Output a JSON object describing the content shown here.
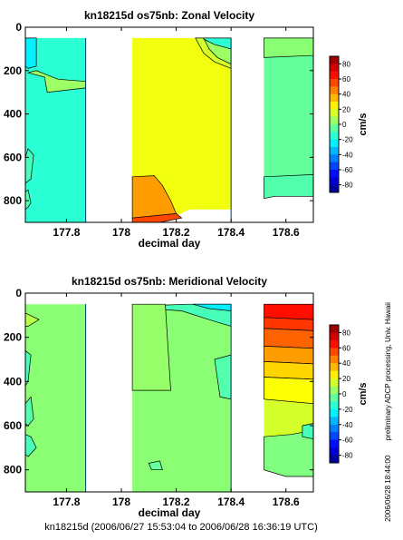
{
  "footer": "kn18215d (2006/06/27 15:53:04 to 2006/06/28 16:36:19 UTC)",
  "side_note": {
    "line1": "preliminary ADCP processing,   Univ. Hawaii",
    "line2": "2006/06/28 18:44:00"
  },
  "chart_data": [
    {
      "type": "heatmap",
      "title": "kn18215d os75nb: Zonal Velocity",
      "xlabel": "decimal day",
      "ylabel": "",
      "xlim": [
        177.65,
        178.7
      ],
      "ylim": [
        900,
        0
      ],
      "xticks": [
        "177.8",
        "178",
        "178.2",
        "178.4",
        "178.6"
      ],
      "yticks": [
        "0",
        "200",
        "400",
        "600",
        "800"
      ],
      "colorbar": {
        "label": "cm/s",
        "range": [
          -90,
          90
        ],
        "ticks": [
          "80",
          "60",
          "40",
          "20",
          "0",
          "-20",
          "-40",
          "-60",
          "-80"
        ]
      },
      "segments": [
        {
          "x": [
            177.65,
            177.87
          ],
          "regions": [
            {
              "value": -15,
              "poly": [
                [
                  177.65,
                  50
                ],
                [
                  177.87,
                  50
                ],
                [
                  177.87,
                  900
                ],
                [
                  177.65,
                  900
                ]
              ]
            },
            {
              "value": -25,
              "poly": [
                [
                  177.65,
                  50
                ],
                [
                  177.69,
                  50
                ],
                [
                  177.69,
                  180
                ],
                [
                  177.66,
                  190
                ],
                [
                  177.65,
                  180
                ]
              ]
            },
            {
              "value": 5,
              "poly": [
                [
                  177.66,
                  210
                ],
                [
                  177.72,
                  230
                ],
                [
                  177.73,
                  300
                ],
                [
                  177.87,
                  280
                ],
                [
                  177.87,
                  250
                ],
                [
                  177.77,
                  240
                ],
                [
                  177.72,
                  215
                ],
                [
                  177.69,
                  200
                ]
              ]
            },
            {
              "value": -10,
              "poly": [
                [
                  177.65,
                  600
                ],
                [
                  177.66,
                  560
                ],
                [
                  177.68,
                  590
                ],
                [
                  177.67,
                  700
                ],
                [
                  177.65,
                  720
                ]
              ]
            },
            {
              "value": -8,
              "poly": [
                [
                  177.65,
                  760
                ],
                [
                  177.66,
                  750
                ],
                [
                  177.67,
                  810
                ],
                [
                  177.66,
                  830
                ],
                [
                  177.65,
                  840
                ]
              ]
            }
          ]
        },
        {
          "x": [
            178.04,
            178.4
          ],
          "regions": [
            {
              "value": 20,
              "poly": [
                [
                  178.04,
                  50
                ],
                [
                  178.4,
                  50
                ],
                [
                  178.4,
                  840
                ],
                [
                  178.25,
                  840
                ],
                [
                  178.2,
                  870
                ],
                [
                  178.04,
                  900
                ]
              ]
            },
            {
              "value": 15,
              "poly": [
                [
                  178.27,
                  50
                ],
                [
                  178.4,
                  50
                ],
                [
                  178.4,
                  190
                ],
                [
                  178.34,
                  160
                ],
                [
                  178.3,
                  120
                ]
              ]
            },
            {
              "value": 5,
              "poly": [
                [
                  178.3,
                  50
                ],
                [
                  178.4,
                  50
                ],
                [
                  178.4,
                  170
                ],
                [
                  178.35,
                  140
                ],
                [
                  178.32,
                  100
                ]
              ]
            },
            {
              "value": -15,
              "poly": [
                [
                  178.3,
                  50
                ],
                [
                  178.4,
                  50
                ],
                [
                  178.4,
                  100
                ],
                [
                  178.34,
                  80
                ],
                [
                  178.3,
                  55
                ]
              ]
            },
            {
              "value": 40,
              "poly": [
                [
                  178.04,
                  690
                ],
                [
                  178.12,
                  685
                ],
                [
                  178.15,
                  730
                ],
                [
                  178.18,
                  800
                ],
                [
                  178.2,
                  860
                ],
                [
                  178.04,
                  880
                ]
              ]
            },
            {
              "value": 55,
              "poly": [
                [
                  178.04,
                  880
                ],
                [
                  178.2,
                  860
                ],
                [
                  178.22,
                  880
                ],
                [
                  178.14,
                  900
                ],
                [
                  178.04,
                  900
                ]
              ]
            }
          ]
        },
        {
          "x": [
            178.52,
            178.7
          ],
          "regions": [
            {
              "value": -5,
              "poly": [
                [
                  178.52,
                  50
                ],
                [
                  178.7,
                  50
                ],
                [
                  178.7,
                  780
                ],
                [
                  178.56,
                  780
                ],
                [
                  178.52,
                  790
                ]
              ]
            },
            {
              "value": 2,
              "poly": [
                [
                  178.52,
                  50
                ],
                [
                  178.7,
                  50
                ],
                [
                  178.7,
                  130
                ],
                [
                  178.52,
                  140
                ]
              ]
            },
            {
              "value": -8,
              "poly": [
                [
                  178.52,
                  690
                ],
                [
                  178.7,
                  680
                ],
                [
                  178.7,
                  780
                ],
                [
                  178.56,
                  780
                ],
                [
                  178.52,
                  790
                ]
              ]
            }
          ]
        }
      ]
    },
    {
      "type": "heatmap",
      "title": "kn18215d os75nb: Meridional Velocity",
      "xlabel": "decimal day",
      "ylabel": "",
      "xlim": [
        177.65,
        178.7
      ],
      "ylim": [
        900,
        0
      ],
      "xticks": [
        "177.8",
        "178",
        "178.2",
        "178.4",
        "178.6"
      ],
      "yticks": [
        "0",
        "200",
        "400",
        "600",
        "800"
      ],
      "colorbar": {
        "label": "cm/s",
        "range": [
          -90,
          90
        ],
        "ticks": [
          "80",
          "60",
          "40",
          "20",
          "0",
          "-20",
          "-40",
          "-60",
          "-80"
        ]
      },
      "segments": [
        {
          "x": [
            177.65,
            177.87
          ],
          "regions": [
            {
              "value": 2,
              "poly": [
                [
                  177.65,
                  50
                ],
                [
                  177.87,
                  50
                ],
                [
                  177.87,
                  900
                ],
                [
                  177.65,
                  900
                ]
              ]
            },
            {
              "value": -10,
              "poly": [
                [
                  177.65,
                  260
                ],
                [
                  177.67,
                  280
                ],
                [
                  177.66,
                  400
                ],
                [
                  177.65,
                  420
                ]
              ]
            },
            {
              "value": -8,
              "poly": [
                [
                  177.65,
                  500
                ],
                [
                  177.67,
                  470
                ],
                [
                  177.68,
                  570
                ],
                [
                  177.66,
                  600
                ],
                [
                  177.65,
                  590
                ]
              ]
            },
            {
              "value": -10,
              "poly": [
                [
                  177.65,
                  640
                ],
                [
                  177.67,
                  650
                ],
                [
                  177.69,
                  700
                ],
                [
                  177.66,
                  740
                ],
                [
                  177.65,
                  730
                ]
              ]
            },
            {
              "value": 10,
              "poly": [
                [
                  177.65,
                  90
                ],
                [
                  177.7,
                  120
                ],
                [
                  177.66,
                  150
                ],
                [
                  177.65,
                  150
                ]
              ]
            }
          ]
        },
        {
          "x": [
            178.04,
            178.4
          ],
          "regions": [
            {
              "value": 2,
              "poly": [
                [
                  178.04,
                  50
                ],
                [
                  178.4,
                  50
                ],
                [
                  178.4,
                  900
                ],
                [
                  178.04,
                  900
                ]
              ]
            },
            {
              "value": -10,
              "poly": [
                [
                  178.04,
                  60
                ],
                [
                  178.24,
                  50
                ],
                [
                  178.4,
                  50
                ],
                [
                  178.4,
                  150
                ],
                [
                  178.32,
                  120
                ],
                [
                  178.22,
                  80
                ],
                [
                  178.1,
                  70
                ]
              ]
            },
            {
              "value": -25,
              "poly": [
                [
                  178.26,
                  50
                ],
                [
                  178.4,
                  50
                ],
                [
                  178.4,
                  80
                ],
                [
                  178.32,
                  70
                ]
              ]
            },
            {
              "value": -8,
              "poly": [
                [
                  178.34,
                  300
                ],
                [
                  178.4,
                  280
                ],
                [
                  178.4,
                  480
                ],
                [
                  178.36,
                  470
                ]
              ]
            },
            {
              "value": 4,
              "poly": [
                [
                  178.04,
                  50
                ],
                [
                  178.16,
                  50
                ],
                [
                  178.18,
                  440
                ],
                [
                  178.04,
                  440
                ]
              ]
            },
            {
              "value": -5,
              "poly": [
                [
                  178.1,
                  770
                ],
                [
                  178.14,
                  760
                ],
                [
                  178.15,
                  800
                ],
                [
                  178.11,
                  800
                ]
              ]
            }
          ]
        },
        {
          "x": [
            178.52,
            178.7
          ],
          "regions": [
            {
              "value": 15,
              "poly": [
                [
                  178.52,
                  50
                ],
                [
                  178.7,
                  50
                ],
                [
                  178.7,
                  830
                ],
                [
                  178.6,
                  830
                ],
                [
                  178.52,
                  800
                ]
              ]
            },
            {
              "value": 65,
              "poly": [
                [
                  178.52,
                  50
                ],
                [
                  178.7,
                  50
                ],
                [
                  178.7,
                  120
                ],
                [
                  178.52,
                  110
                ]
              ]
            },
            {
              "value": 58,
              "poly": [
                [
                  178.52,
                  110
                ],
                [
                  178.7,
                  120
                ],
                [
                  178.7,
                  170
                ],
                [
                  178.52,
                  160
                ]
              ]
            },
            {
              "value": 50,
              "poly": [
                [
                  178.52,
                  160
                ],
                [
                  178.7,
                  170
                ],
                [
                  178.7,
                  250
                ],
                [
                  178.52,
                  240
                ]
              ]
            },
            {
              "value": 40,
              "poly": [
                [
                  178.52,
                  240
                ],
                [
                  178.7,
                  250
                ],
                [
                  178.7,
                  320
                ],
                [
                  178.52,
                  310
                ]
              ]
            },
            {
              "value": 30,
              "poly": [
                [
                  178.52,
                  310
                ],
                [
                  178.7,
                  320
                ],
                [
                  178.7,
                  390
                ],
                [
                  178.52,
                  380
                ]
              ]
            },
            {
              "value": 22,
              "poly": [
                [
                  178.52,
                  380
                ],
                [
                  178.7,
                  390
                ],
                [
                  178.7,
                  500
                ],
                [
                  178.52,
                  480
                ]
              ]
            },
            {
              "value": 0,
              "poly": [
                [
                  178.52,
                  650
                ],
                [
                  178.62,
                  640
                ],
                [
                  178.7,
                  620
                ],
                [
                  178.7,
                  830
                ],
                [
                  178.6,
                  830
                ],
                [
                  178.52,
                  800
                ]
              ]
            },
            {
              "value": -10,
              "poly": [
                [
                  178.66,
                  600
                ],
                [
                  178.7,
                  590
                ],
                [
                  178.7,
                  660
                ],
                [
                  178.66,
                  650
                ]
              ]
            }
          ]
        }
      ]
    }
  ]
}
